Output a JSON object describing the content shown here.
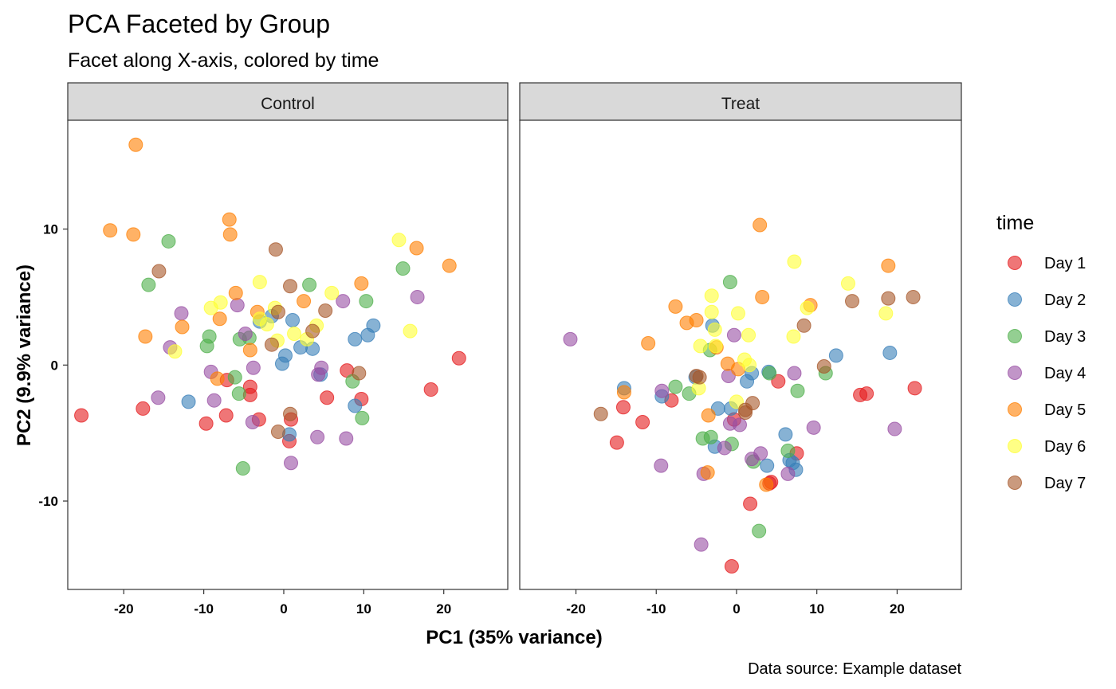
{
  "chart_data": {
    "type": "scatter",
    "title": "PCA Faceted by Group",
    "subtitle": "Facet along X-axis, colored by time",
    "xlabel": "PC1 (35% variance)",
    "ylabel": "PC2 (9.9% variance)",
    "caption": "Data source: Example dataset",
    "xlim": [
      -27,
      28
    ],
    "ylim": [
      -16.5,
      18
    ],
    "x_ticks": [
      -20,
      -10,
      0,
      10,
      20
    ],
    "y_ticks": [
      -10,
      0,
      10
    ],
    "grid": false,
    "legend": {
      "title": "time",
      "position": "right",
      "items": [
        {
          "label": "Day 1",
          "color": "#E41A1C"
        },
        {
          "label": "Day 2",
          "color": "#377EB8"
        },
        {
          "label": "Day 3",
          "color": "#4DAF4A"
        },
        {
          "label": "Day 4",
          "color": "#984EA3"
        },
        {
          "label": "Day 5",
          "color": "#FF7F00"
        },
        {
          "label": "Day 6",
          "color": "#FFFF33"
        },
        {
          "label": "Day 7",
          "color": "#A65628"
        }
      ]
    },
    "facets": [
      {
        "label": "Control",
        "series": [
          {
            "name": "Day 1",
            "points": [
              [
                -25.3,
                -3.7
              ],
              [
                -17.6,
                -3.2
              ],
              [
                -9.7,
                -4.3
              ],
              [
                -7.2,
                -3.7
              ],
              [
                -4.2,
                -1.6
              ],
              [
                -4.2,
                -2.2
              ],
              [
                -3.1,
                -4.0
              ],
              [
                0.7,
                -5.6
              ],
              [
                0.9,
                -4.0
              ],
              [
                5.4,
                -2.4
              ],
              [
                7.9,
                -0.4
              ],
              [
                9.7,
                -2.5
              ],
              [
                18.4,
                -1.8
              ],
              [
                21.9,
                0.5
              ],
              [
                -7.1,
                -1.1
              ]
            ]
          },
          {
            "name": "Day 2",
            "points": [
              [
                -11.9,
                -2.7
              ],
              [
                -3.0,
                3.2
              ],
              [
                -1.5,
                3.6
              ],
              [
                0.2,
                0.7
              ],
              [
                -0.2,
                0.1
              ],
              [
                1.1,
                3.3
              ],
              [
                2.1,
                1.3
              ],
              [
                3.6,
                1.2
              ],
              [
                4.6,
                -0.7
              ],
              [
                8.9,
                1.9
              ],
              [
                8.9,
                -3.0
              ],
              [
                10.5,
                2.2
              ],
              [
                11.2,
                2.9
              ],
              [
                0.7,
                -5.1
              ]
            ]
          },
          {
            "name": "Day 3",
            "points": [
              [
                -14.4,
                9.1
              ],
              [
                -16.9,
                5.9
              ],
              [
                -9.6,
                1.4
              ],
              [
                -9.3,
                2.1
              ],
              [
                -6.1,
                -0.9
              ],
              [
                -5.6,
                -2.1
              ],
              [
                -5.5,
                1.9
              ],
              [
                -5.1,
                -7.6
              ],
              [
                -4.3,
                2.0
              ],
              [
                3.2,
                5.9
              ],
              [
                8.6,
                -1.2
              ],
              [
                9.8,
                -3.9
              ],
              [
                10.3,
                4.7
              ],
              [
                14.9,
                7.1
              ]
            ]
          },
          {
            "name": "Day 4",
            "points": [
              [
                -12.8,
                3.8
              ],
              [
                -14.2,
                1.3
              ],
              [
                -15.7,
                -2.4
              ],
              [
                -9.1,
                -0.5
              ],
              [
                -8.7,
                -2.6
              ],
              [
                -5.8,
                4.4
              ],
              [
                -4.8,
                2.3
              ],
              [
                -3.9,
                -4.2
              ],
              [
                -3.8,
                -0.2
              ],
              [
                0.9,
                -7.2
              ],
              [
                4.2,
                -5.3
              ],
              [
                4.3,
                -0.7
              ],
              [
                4.7,
                -0.2
              ],
              [
                7.4,
                4.7
              ],
              [
                7.8,
                -5.4
              ],
              [
                16.7,
                5.0
              ]
            ]
          },
          {
            "name": "Day 5",
            "points": [
              [
                -21.7,
                9.9
              ],
              [
                -18.8,
                9.6
              ],
              [
                -18.5,
                16.2
              ],
              [
                -17.3,
                2.1
              ],
              [
                -12.7,
                2.8
              ],
              [
                -8.3,
                -1.0
              ],
              [
                -8.0,
                3.4
              ],
              [
                -6.8,
                10.7
              ],
              [
                -6.7,
                9.6
              ],
              [
                -6.0,
                5.3
              ],
              [
                -4.2,
                1.1
              ],
              [
                -3.3,
                3.9
              ],
              [
                2.5,
                4.7
              ],
              [
                9.7,
                6.0
              ],
              [
                16.6,
                8.6
              ],
              [
                20.7,
                7.3
              ]
            ]
          },
          {
            "name": "Day 6",
            "points": [
              [
                -13.6,
                1.0
              ],
              [
                -9.1,
                4.2
              ],
              [
                -7.9,
                4.6
              ],
              [
                -3.0,
                6.1
              ],
              [
                -3.0,
                3.4
              ],
              [
                -2.1,
                3.0
              ],
              [
                -1.1,
                4.2
              ],
              [
                1.3,
                2.3
              ],
              [
                2.9,
                1.9
              ],
              [
                4.1,
                2.9
              ],
              [
                6.0,
                5.3
              ],
              [
                14.4,
                9.2
              ],
              [
                15.8,
                2.5
              ],
              [
                -0.8,
                1.8
              ]
            ]
          },
          {
            "name": "Day 7",
            "points": [
              [
                -15.6,
                6.9
              ],
              [
                -1.0,
                8.5
              ],
              [
                0.8,
                5.8
              ],
              [
                5.2,
                4.0
              ],
              [
                3.6,
                2.5
              ],
              [
                -1.5,
                1.5
              ],
              [
                -0.7,
                3.9
              ],
              [
                -0.7,
                -4.9
              ],
              [
                0.8,
                -3.6
              ],
              [
                9.4,
                -0.6
              ]
            ]
          }
        ]
      },
      {
        "label": "Treat",
        "series": [
          {
            "name": "Day 1",
            "points": [
              [
                -14.9,
                -5.7
              ],
              [
                -14.1,
                -3.1
              ],
              [
                -11.7,
                -4.2
              ],
              [
                -8.1,
                -2.6
              ],
              [
                -0.3,
                -4.0
              ],
              [
                -0.6,
                -14.8
              ],
              [
                1.7,
                -10.2
              ],
              [
                4.1,
                -8.7
              ],
              [
                5.2,
                -1.2
              ],
              [
                7.5,
                -6.5
              ],
              [
                15.4,
                -2.2
              ],
              [
                16.2,
                -2.1
              ],
              [
                22.2,
                -1.7
              ],
              [
                4.3,
                -8.6
              ]
            ]
          },
          {
            "name": "Day 2",
            "points": [
              [
                -14.0,
                -1.7
              ],
              [
                -9.3,
                -2.3
              ],
              [
                -5.1,
                -0.9
              ],
              [
                -3.0,
                2.9
              ],
              [
                -2.7,
                -6.0
              ],
              [
                -2.3,
                -3.2
              ],
              [
                -0.7,
                -3.2
              ],
              [
                1.3,
                -1.2
              ],
              [
                1.9,
                -0.6
              ],
              [
                4.0,
                -0.5
              ],
              [
                3.8,
                -7.4
              ],
              [
                6.1,
                -5.1
              ],
              [
                6.6,
                -7.0
              ],
              [
                7.4,
                -7.7
              ],
              [
                12.4,
                0.7
              ],
              [
                19.1,
                0.9
              ],
              [
                7.0,
                -7.2
              ]
            ]
          },
          {
            "name": "Day 3",
            "points": [
              [
                -7.6,
                -1.6
              ],
              [
                -5.9,
                -2.1
              ],
              [
                -4.2,
                -5.4
              ],
              [
                -3.2,
                -5.3
              ],
              [
                -3.3,
                1.1
              ],
              [
                -0.8,
                6.1
              ],
              [
                -0.6,
                -5.8
              ],
              [
                2.1,
                -7.1
              ],
              [
                2.8,
                -12.2
              ],
              [
                4.1,
                -0.6
              ],
              [
                6.4,
                -6.3
              ],
              [
                7.6,
                -1.9
              ],
              [
                11.1,
                -0.6
              ]
            ]
          },
          {
            "name": "Day 4",
            "points": [
              [
                -20.7,
                1.9
              ],
              [
                -9.3,
                -1.9
              ],
              [
                -9.4,
                -7.4
              ],
              [
                -4.4,
                -13.2
              ],
              [
                -4.1,
                -8.0
              ],
              [
                -1.5,
                -6.1
              ],
              [
                -0.8,
                -4.3
              ],
              [
                -0.3,
                2.2
              ],
              [
                -1.0,
                -0.8
              ],
              [
                0.4,
                -4.4
              ],
              [
                1.9,
                -6.9
              ],
              [
                3.0,
                -6.5
              ],
              [
                6.4,
                -8.0
              ],
              [
                7.2,
                -0.6
              ],
              [
                9.6,
                -4.6
              ],
              [
                19.7,
                -4.7
              ]
            ]
          },
          {
            "name": "Day 5",
            "points": [
              [
                -14.0,
                -2.0
              ],
              [
                -11.0,
                1.6
              ],
              [
                -7.6,
                4.3
              ],
              [
                -6.2,
                3.1
              ],
              [
                -5.0,
                3.3
              ],
              [
                -2.5,
                1.3
              ],
              [
                -3.5,
                -3.7
              ],
              [
                -3.6,
                -7.9
              ],
              [
                -1.1,
                0.1
              ],
              [
                0.2,
                -0.3
              ],
              [
                2.9,
                10.3
              ],
              [
                3.2,
                5.0
              ],
              [
                3.7,
                -8.8
              ],
              [
                9.2,
                4.4
              ],
              [
                18.9,
                7.3
              ]
            ]
          },
          {
            "name": "Day 6",
            "points": [
              [
                -4.7,
                -1.7
              ],
              [
                -4.5,
                1.4
              ],
              [
                -3.1,
                5.1
              ],
              [
                -3.1,
                3.9
              ],
              [
                -2.7,
                2.6
              ],
              [
                -2.6,
                1.4
              ],
              [
                0.2,
                3.8
              ],
              [
                1.0,
                0.4
              ],
              [
                1.5,
                2.2
              ],
              [
                1.6,
                0.0
              ],
              [
                7.2,
                7.6
              ],
              [
                7.1,
                2.1
              ],
              [
                8.8,
                4.2
              ],
              [
                13.9,
                6.0
              ],
              [
                18.6,
                3.8
              ],
              [
                0.0,
                -2.7
              ]
            ]
          },
          {
            "name": "Day 7",
            "points": [
              [
                -16.9,
                -3.6
              ],
              [
                -5.0,
                -0.8
              ],
              [
                -4.6,
                -0.9
              ],
              [
                1.1,
                -3.5
              ],
              [
                1.1,
                -3.3
              ],
              [
                2.0,
                -2.8
              ],
              [
                8.4,
                2.9
              ],
              [
                10.9,
                -0.1
              ],
              [
                14.4,
                4.7
              ],
              [
                18.9,
                4.9
              ],
              [
                22.0,
                5.0
              ]
            ]
          }
        ]
      }
    ]
  }
}
